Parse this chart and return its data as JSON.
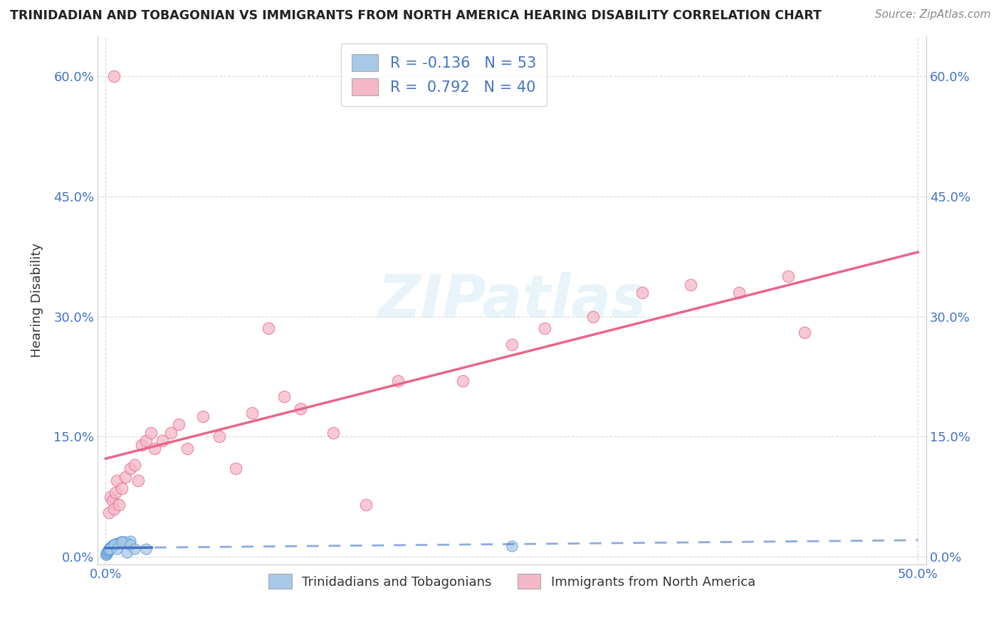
{
  "title": "TRINIDADIAN AND TOBAGONIAN VS IMMIGRANTS FROM NORTH AMERICA HEARING DISABILITY CORRELATION CHART",
  "source": "Source: ZipAtlas.com",
  "ylabel": "Hearing Disability",
  "xlim": [
    -0.005,
    0.505
  ],
  "ylim": [
    -0.01,
    0.65
  ],
  "xticks": [
    0.0,
    0.5
  ],
  "yticks": [
    0.0,
    0.15,
    0.3,
    0.45,
    0.6
  ],
  "xtick_labels": [
    "0.0%",
    "50.0%"
  ],
  "ytick_labels": [
    "0.0%",
    "15.0%",
    "30.0%",
    "45.0%",
    "60.0%"
  ],
  "blue_R": -0.136,
  "blue_N": 53,
  "pink_R": 0.792,
  "pink_N": 40,
  "blue_color": "#a8c8e8",
  "pink_color": "#f4b8c8",
  "blue_edge_color": "#5b9bd5",
  "pink_edge_color": "#e8668a",
  "blue_line_color": "#4472c4",
  "pink_line_color": "#e8668a",
  "legend_label_blue": "Trinidadians and Tobagonians",
  "legend_label_pink": "Immigrants from North America",
  "watermark": "ZIPatlas",
  "background_color": "#ffffff",
  "grid_color": "#c0c0c0",
  "title_color": "#222222",
  "tick_label_color": "#4472c4"
}
